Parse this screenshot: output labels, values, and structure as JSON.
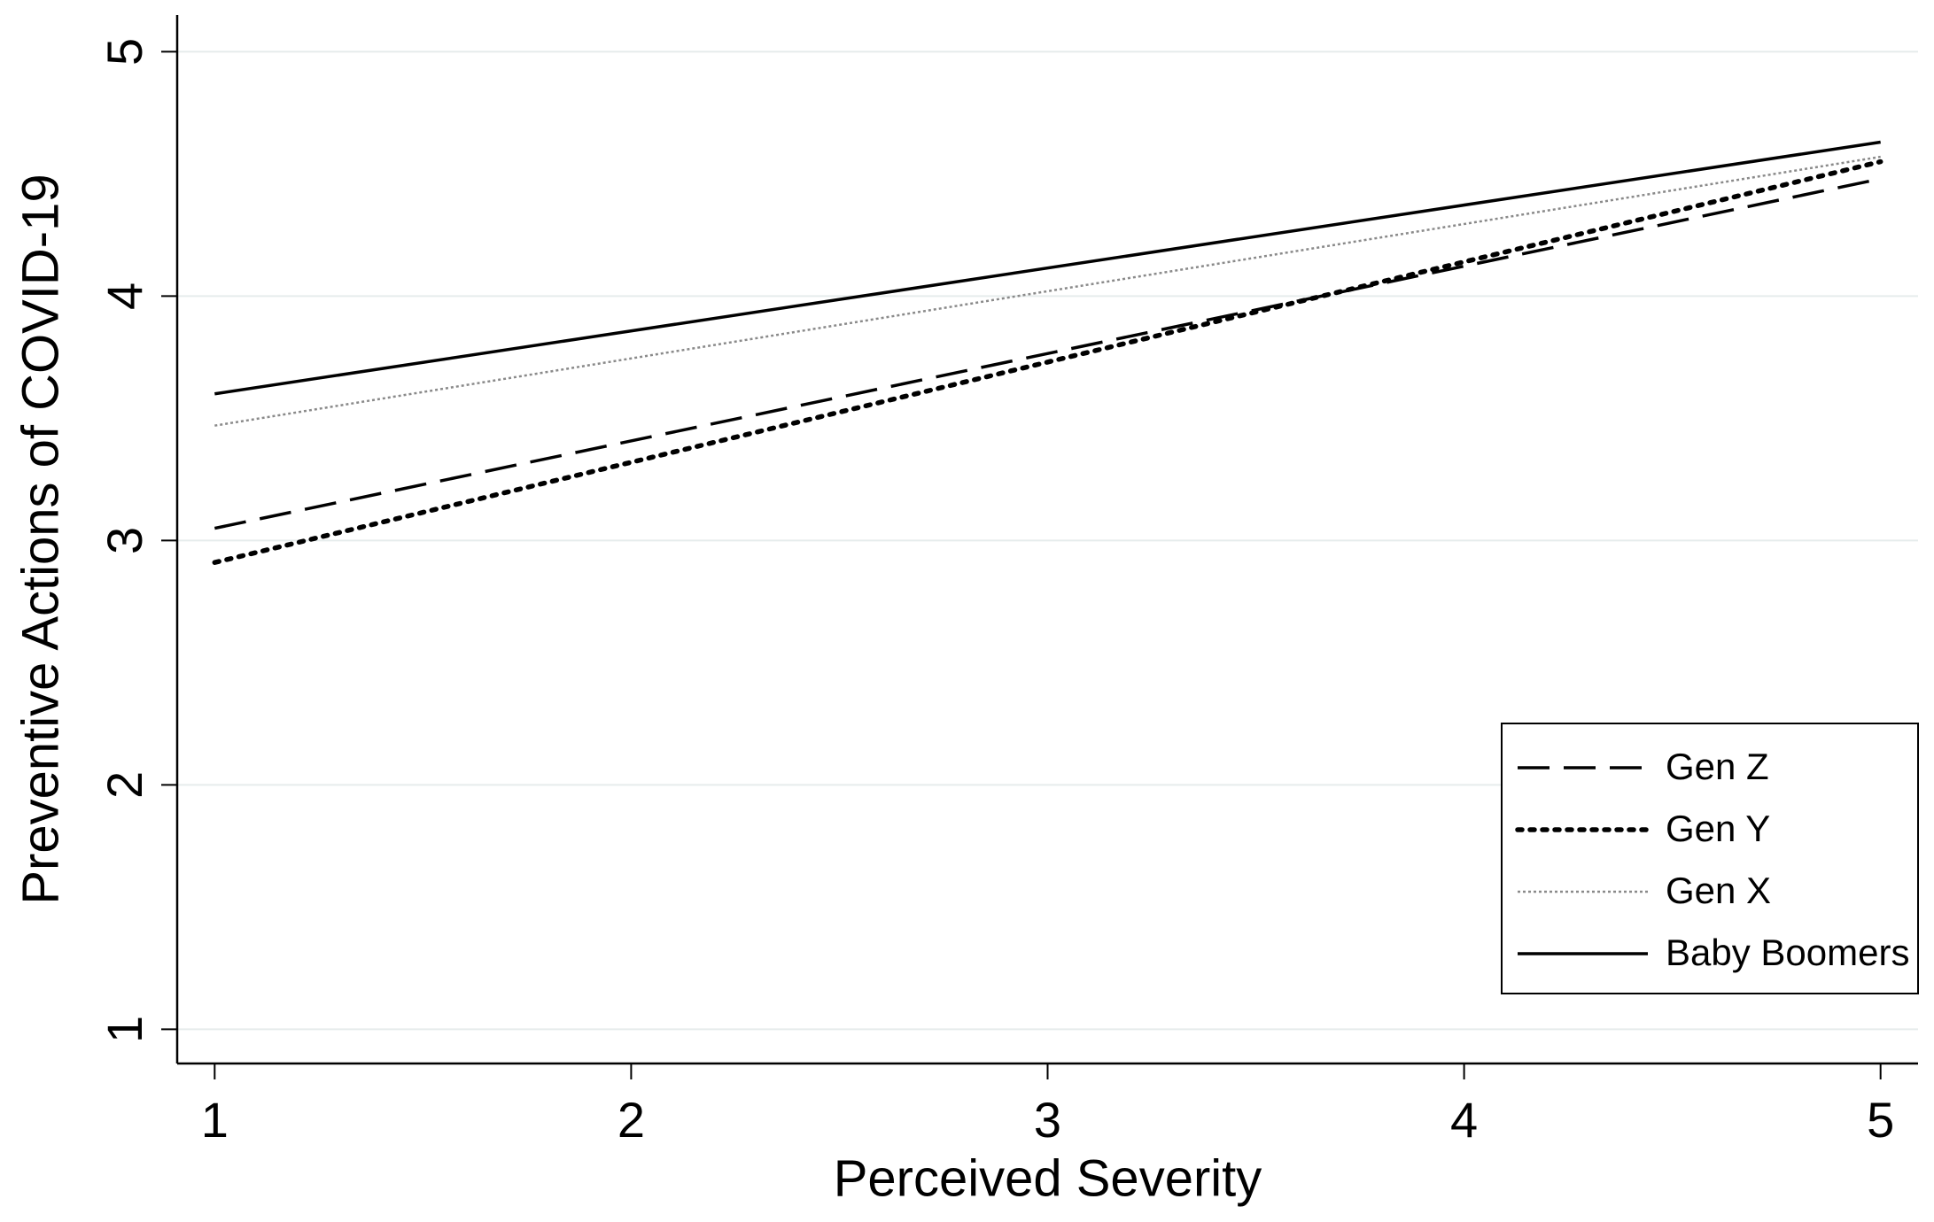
{
  "chart_data": {
    "type": "line",
    "x_label": "Perceived Severity",
    "y_label": "Preventive Actions of COVID-19",
    "x": [
      1,
      5
    ],
    "series": [
      {
        "name": "Gen Z",
        "color": "#000000",
        "linestyle": "dashed",
        "values": [
          3.05,
          4.48
        ]
      },
      {
        "name": "Gen Y",
        "color": "#000000",
        "linestyle": "dotted",
        "values": [
          2.91,
          4.55
        ]
      },
      {
        "name": "Gen X",
        "color": "#8a8a8a",
        "linestyle": "finedotted",
        "values": [
          3.47,
          4.57
        ]
      },
      {
        "name": "Baby Boomers",
        "color": "#000000",
        "linestyle": "solid",
        "values": [
          3.6,
          4.63
        ]
      }
    ],
    "xlim": [
      0.91,
      5.09
    ],
    "ylim": [
      0.86,
      5.15
    ],
    "xticks": [
      1,
      2,
      3,
      4,
      5
    ],
    "yticks": [
      1,
      2,
      3,
      4,
      5
    ],
    "grid": true,
    "legend": "lower right"
  }
}
